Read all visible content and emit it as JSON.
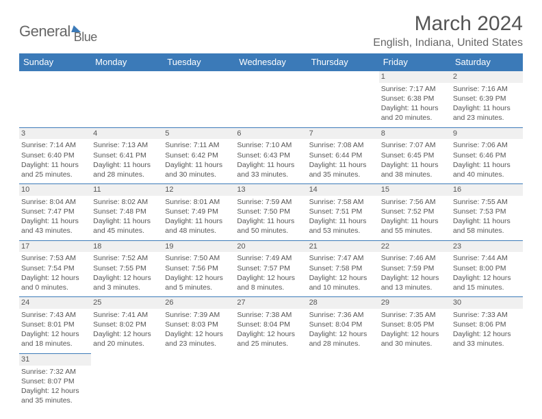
{
  "logo": {
    "text1": "General",
    "text2": "Blue"
  },
  "header": {
    "month_title": "March 2024",
    "location": "English, Indiana, United States"
  },
  "calendar": {
    "day_headers": [
      "Sunday",
      "Monday",
      "Tuesday",
      "Wednesday",
      "Thursday",
      "Friday",
      "Saturday"
    ],
    "header_bg": "#3b7ab8",
    "header_fg": "#ffffff",
    "cell_border": "#3b7ab8",
    "daynum_bg": "#f0f0f0",
    "text_color": "#555555",
    "font_size_cell": 10.5,
    "weeks": [
      [
        null,
        null,
        null,
        null,
        null,
        {
          "n": "1",
          "sunrise": "Sunrise: 7:17 AM",
          "sunset": "Sunset: 6:38 PM",
          "day1": "Daylight: 11 hours",
          "day2": "and 20 minutes."
        },
        {
          "n": "2",
          "sunrise": "Sunrise: 7:16 AM",
          "sunset": "Sunset: 6:39 PM",
          "day1": "Daylight: 11 hours",
          "day2": "and 23 minutes."
        }
      ],
      [
        {
          "n": "3",
          "sunrise": "Sunrise: 7:14 AM",
          "sunset": "Sunset: 6:40 PM",
          "day1": "Daylight: 11 hours",
          "day2": "and 25 minutes."
        },
        {
          "n": "4",
          "sunrise": "Sunrise: 7:13 AM",
          "sunset": "Sunset: 6:41 PM",
          "day1": "Daylight: 11 hours",
          "day2": "and 28 minutes."
        },
        {
          "n": "5",
          "sunrise": "Sunrise: 7:11 AM",
          "sunset": "Sunset: 6:42 PM",
          "day1": "Daylight: 11 hours",
          "day2": "and 30 minutes."
        },
        {
          "n": "6",
          "sunrise": "Sunrise: 7:10 AM",
          "sunset": "Sunset: 6:43 PM",
          "day1": "Daylight: 11 hours",
          "day2": "and 33 minutes."
        },
        {
          "n": "7",
          "sunrise": "Sunrise: 7:08 AM",
          "sunset": "Sunset: 6:44 PM",
          "day1": "Daylight: 11 hours",
          "day2": "and 35 minutes."
        },
        {
          "n": "8",
          "sunrise": "Sunrise: 7:07 AM",
          "sunset": "Sunset: 6:45 PM",
          "day1": "Daylight: 11 hours",
          "day2": "and 38 minutes."
        },
        {
          "n": "9",
          "sunrise": "Sunrise: 7:06 AM",
          "sunset": "Sunset: 6:46 PM",
          "day1": "Daylight: 11 hours",
          "day2": "and 40 minutes."
        }
      ],
      [
        {
          "n": "10",
          "sunrise": "Sunrise: 8:04 AM",
          "sunset": "Sunset: 7:47 PM",
          "day1": "Daylight: 11 hours",
          "day2": "and 43 minutes."
        },
        {
          "n": "11",
          "sunrise": "Sunrise: 8:02 AM",
          "sunset": "Sunset: 7:48 PM",
          "day1": "Daylight: 11 hours",
          "day2": "and 45 minutes."
        },
        {
          "n": "12",
          "sunrise": "Sunrise: 8:01 AM",
          "sunset": "Sunset: 7:49 PM",
          "day1": "Daylight: 11 hours",
          "day2": "and 48 minutes."
        },
        {
          "n": "13",
          "sunrise": "Sunrise: 7:59 AM",
          "sunset": "Sunset: 7:50 PM",
          "day1": "Daylight: 11 hours",
          "day2": "and 50 minutes."
        },
        {
          "n": "14",
          "sunrise": "Sunrise: 7:58 AM",
          "sunset": "Sunset: 7:51 PM",
          "day1": "Daylight: 11 hours",
          "day2": "and 53 minutes."
        },
        {
          "n": "15",
          "sunrise": "Sunrise: 7:56 AM",
          "sunset": "Sunset: 7:52 PM",
          "day1": "Daylight: 11 hours",
          "day2": "and 55 minutes."
        },
        {
          "n": "16",
          "sunrise": "Sunrise: 7:55 AM",
          "sunset": "Sunset: 7:53 PM",
          "day1": "Daylight: 11 hours",
          "day2": "and 58 minutes."
        }
      ],
      [
        {
          "n": "17",
          "sunrise": "Sunrise: 7:53 AM",
          "sunset": "Sunset: 7:54 PM",
          "day1": "Daylight: 12 hours",
          "day2": "and 0 minutes."
        },
        {
          "n": "18",
          "sunrise": "Sunrise: 7:52 AM",
          "sunset": "Sunset: 7:55 PM",
          "day1": "Daylight: 12 hours",
          "day2": "and 3 minutes."
        },
        {
          "n": "19",
          "sunrise": "Sunrise: 7:50 AM",
          "sunset": "Sunset: 7:56 PM",
          "day1": "Daylight: 12 hours",
          "day2": "and 5 minutes."
        },
        {
          "n": "20",
          "sunrise": "Sunrise: 7:49 AM",
          "sunset": "Sunset: 7:57 PM",
          "day1": "Daylight: 12 hours",
          "day2": "and 8 minutes."
        },
        {
          "n": "21",
          "sunrise": "Sunrise: 7:47 AM",
          "sunset": "Sunset: 7:58 PM",
          "day1": "Daylight: 12 hours",
          "day2": "and 10 minutes."
        },
        {
          "n": "22",
          "sunrise": "Sunrise: 7:46 AM",
          "sunset": "Sunset: 7:59 PM",
          "day1": "Daylight: 12 hours",
          "day2": "and 13 minutes."
        },
        {
          "n": "23",
          "sunrise": "Sunrise: 7:44 AM",
          "sunset": "Sunset: 8:00 PM",
          "day1": "Daylight: 12 hours",
          "day2": "and 15 minutes."
        }
      ],
      [
        {
          "n": "24",
          "sunrise": "Sunrise: 7:43 AM",
          "sunset": "Sunset: 8:01 PM",
          "day1": "Daylight: 12 hours",
          "day2": "and 18 minutes."
        },
        {
          "n": "25",
          "sunrise": "Sunrise: 7:41 AM",
          "sunset": "Sunset: 8:02 PM",
          "day1": "Daylight: 12 hours",
          "day2": "and 20 minutes."
        },
        {
          "n": "26",
          "sunrise": "Sunrise: 7:39 AM",
          "sunset": "Sunset: 8:03 PM",
          "day1": "Daylight: 12 hours",
          "day2": "and 23 minutes."
        },
        {
          "n": "27",
          "sunrise": "Sunrise: 7:38 AM",
          "sunset": "Sunset: 8:04 PM",
          "day1": "Daylight: 12 hours",
          "day2": "and 25 minutes."
        },
        {
          "n": "28",
          "sunrise": "Sunrise: 7:36 AM",
          "sunset": "Sunset: 8:04 PM",
          "day1": "Daylight: 12 hours",
          "day2": "and 28 minutes."
        },
        {
          "n": "29",
          "sunrise": "Sunrise: 7:35 AM",
          "sunset": "Sunset: 8:05 PM",
          "day1": "Daylight: 12 hours",
          "day2": "and 30 minutes."
        },
        {
          "n": "30",
          "sunrise": "Sunrise: 7:33 AM",
          "sunset": "Sunset: 8:06 PM",
          "day1": "Daylight: 12 hours",
          "day2": "and 33 minutes."
        }
      ],
      [
        {
          "n": "31",
          "sunrise": "Sunrise: 7:32 AM",
          "sunset": "Sunset: 8:07 PM",
          "day1": "Daylight: 12 hours",
          "day2": "and 35 minutes."
        },
        null,
        null,
        null,
        null,
        null,
        null
      ]
    ]
  }
}
